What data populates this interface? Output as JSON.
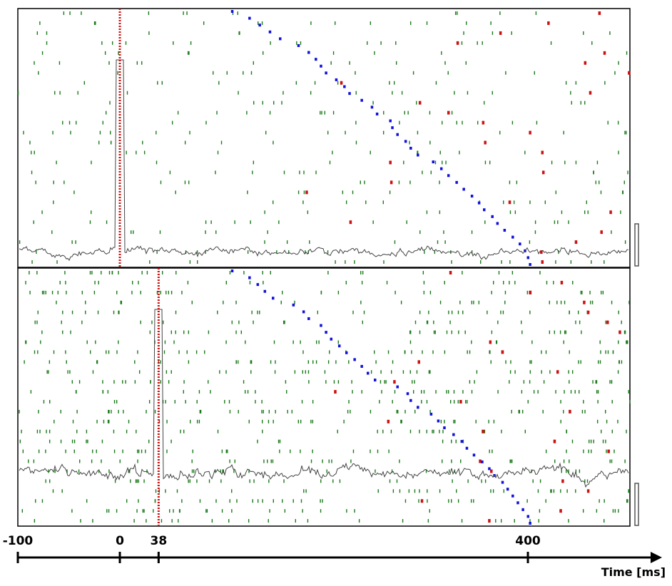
{
  "chart_data": {
    "type": "scatter",
    "x_axis": {
      "label": "Time [ms]",
      "range_ms": [
        -100,
        500
      ],
      "ticks": [
        -100,
        0,
        38,
        400
      ],
      "tick_labels": [
        "-100",
        "0",
        "38",
        "400"
      ]
    },
    "colors": {
      "spike": "#1a7a1a",
      "marker_red": "#cc1111",
      "marker_blue": "#1111dd",
      "trace": "#444444",
      "frame": "#000000",
      "alignment_line": "#cc1111"
    },
    "panels": [
      {
        "name": "upper-raster",
        "trials": 26,
        "alignment_time_ms": 0,
        "blue_marker_times_ms": [
          110,
          127,
          137,
          147,
          157,
          175,
          185,
          192,
          197,
          202,
          212,
          220,
          225,
          237,
          247,
          252,
          265,
          267,
          272,
          280,
          285,
          292,
          307,
          315,
          322,
          330,
          337,
          345,
          352,
          357,
          365,
          370,
          377,
          385,
          392,
          397,
          400,
          402
        ],
        "red_marker_times_ms": [
          470,
          420,
          373,
          331,
          475,
          456,
          499,
          217,
          461,
          294,
          322,
          356,
          402,
          358,
          414,
          265,
          415,
          266,
          183,
          382,
          481,
          226,
          472,
          447,
          413,
          414
        ],
        "firing_rate_trace": "peri-event spike density"
      },
      {
        "name": "lower-raster",
        "trials": 26,
        "alignment_time_ms": 38,
        "blue_marker_times_ms": [
          110,
          127,
          135,
          142,
          150,
          170,
          180,
          185,
          197,
          202,
          207,
          215,
          222,
          230,
          237,
          243,
          250,
          272,
          282,
          285,
          292,
          305,
          312,
          318,
          327,
          335,
          340,
          347,
          355,
          362,
          367,
          375,
          380,
          385,
          390,
          395,
          400,
          402
        ],
        "red_marker_times_ms": [
          324,
          433,
          402,
          455,
          459,
          478,
          490,
          363,
          375,
          293,
          429,
          269,
          211,
          334,
          441,
          263,
          356,
          426,
          479,
          353,
          364,
          434,
          459,
          296,
          432,
          362
        ],
        "firing_rate_trace": "peri-event spike density"
      }
    ]
  }
}
